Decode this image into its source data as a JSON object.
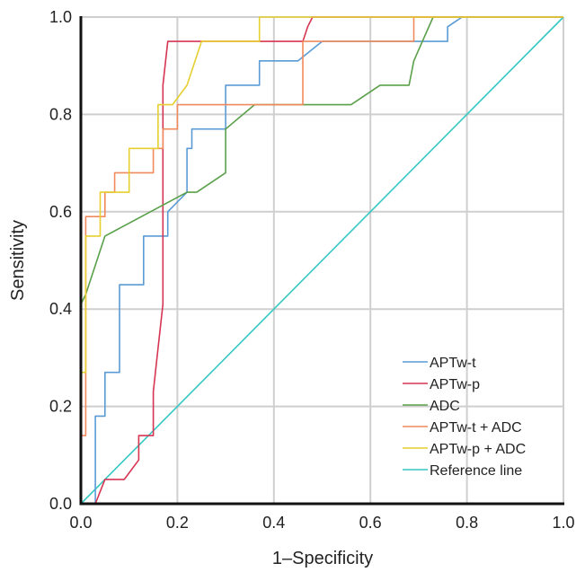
{
  "chart_data": {
    "type": "line",
    "xlabel": "1–Specificity",
    "ylabel": "Sensitivity",
    "xlim": [
      0,
      1
    ],
    "ylim": [
      0,
      1
    ],
    "grid": true,
    "legend_position": "bottom-right",
    "x_ticks": [
      "0.0",
      "0.2",
      "0.4",
      "0.6",
      "0.8",
      "1.0"
    ],
    "y_ticks": [
      "0.0",
      "0.2",
      "0.4",
      "0.6",
      "0.8",
      "1.0"
    ],
    "series": [
      {
        "name": "APTw-t",
        "color": "#5b9bd5",
        "x": [
          0.03,
          0.03,
          0.05,
          0.05,
          0.08,
          0.08,
          0.13,
          0.13,
          0.18,
          0.18,
          0.22,
          0.22,
          0.23,
          0.23,
          0.3,
          0.3,
          0.34,
          0.34,
          0.37,
          0.37,
          0.45,
          0.45,
          0.5,
          0.5,
          0.76,
          0.76,
          0.79,
          1.0
        ],
        "y": [
          0.0,
          0.18,
          0.18,
          0.27,
          0.27,
          0.45,
          0.45,
          0.55,
          0.55,
          0.6,
          0.64,
          0.73,
          0.73,
          0.77,
          0.77,
          0.86,
          0.86,
          0.86,
          0.86,
          0.91,
          0.91,
          0.91,
          0.95,
          0.95,
          0.95,
          0.98,
          1.0,
          1.0
        ]
      },
      {
        "name": "APTw-p",
        "color": "#d63552",
        "x": [
          0.03,
          0.05,
          0.08,
          0.09,
          0.12,
          0.12,
          0.15,
          0.15,
          0.16,
          0.17,
          0.17,
          0.18,
          0.46,
          0.47,
          0.48,
          1.0
        ],
        "y": [
          0.0,
          0.05,
          0.05,
          0.05,
          0.09,
          0.14,
          0.14,
          0.23,
          0.32,
          0.41,
          0.86,
          0.95,
          0.95,
          0.98,
          1.0,
          1.0
        ]
      },
      {
        "name": "ADC",
        "color": "#5aa04a",
        "x": [
          0.0,
          0.0,
          0.01,
          0.05,
          0.22,
          0.24,
          0.3,
          0.3,
          0.36,
          0.56,
          0.62,
          0.68,
          0.69,
          0.69,
          0.73,
          1.0
        ],
        "y": [
          0.0,
          0.41,
          0.43,
          0.55,
          0.64,
          0.64,
          0.68,
          0.77,
          0.82,
          0.82,
          0.86,
          0.86,
          0.91,
          0.91,
          1.0,
          1.0
        ]
      },
      {
        "name": "APTw-t + ADC",
        "color": "#f08a5d",
        "x": [
          0.0,
          0.0,
          0.01,
          0.01,
          0.03,
          0.03,
          0.05,
          0.05,
          0.07,
          0.07,
          0.1,
          0.1,
          0.15,
          0.15,
          0.17,
          0.17,
          0.2,
          0.2,
          0.46,
          0.46,
          0.69,
          0.69,
          1.0
        ],
        "y": [
          0.0,
          0.14,
          0.14,
          0.59,
          0.59,
          0.59,
          0.59,
          0.64,
          0.64,
          0.68,
          0.68,
          0.68,
          0.68,
          0.73,
          0.73,
          0.77,
          0.77,
          0.82,
          0.82,
          0.95,
          0.95,
          1.0,
          1.0
        ]
      },
      {
        "name": "APTw-p + ADC",
        "color": "#e6cf2e",
        "x": [
          0.0,
          0.0,
          0.01,
          0.01,
          0.02,
          0.02,
          0.04,
          0.04,
          0.05,
          0.05,
          0.1,
          0.1,
          0.16,
          0.16,
          0.19,
          0.19,
          0.22,
          0.22,
          0.25,
          0.25,
          0.37,
          0.37,
          1.0
        ],
        "y": [
          0.0,
          0.27,
          0.27,
          0.55,
          0.55,
          0.55,
          0.55,
          0.64,
          0.64,
          0.64,
          0.64,
          0.73,
          0.73,
          0.82,
          0.82,
          0.82,
          0.86,
          0.86,
          0.95,
          0.95,
          0.95,
          1.0,
          1.0
        ]
      },
      {
        "name": "Reference line",
        "color": "#35c8c3",
        "x": [
          0.0,
          1.0
        ],
        "y": [
          0.0,
          1.0
        ]
      }
    ]
  }
}
